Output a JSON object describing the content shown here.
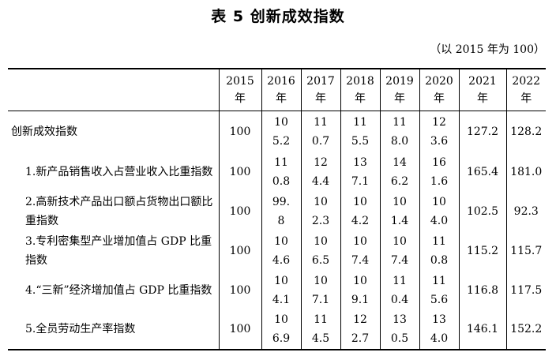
{
  "title": "表 5   创新成效指数",
  "subtitle": "（以 2015 年为 100）",
  "table": {
    "header": [
      {
        "year": "2015",
        "unit": "年"
      },
      {
        "year": "2016",
        "unit": "年"
      },
      {
        "year": "2017",
        "unit": "年"
      },
      {
        "year": "2018",
        "unit": "年"
      },
      {
        "year": "2019",
        "unit": "年"
      },
      {
        "year": "2020",
        "unit": "年"
      },
      {
        "year": "2021",
        "unit": "年"
      },
      {
        "year": "2022",
        "unit": "年"
      }
    ],
    "rows": [
      {
        "label": "创新成效指数",
        "values": [
          "100",
          "105.2",
          "110.7",
          "115.5",
          "118.0",
          "123.6",
          "127.2",
          "128.2"
        ]
      },
      {
        "label": "1.新产品销售收入占营业收入比重指数",
        "values": [
          "100",
          "110.8",
          "124.4",
          "137.1",
          "146.2",
          "161.6",
          "165.4",
          "181.0"
        ]
      },
      {
        "label": "2.高新技术产品出口额占货物出口额比重指数",
        "values": [
          "100",
          "99.8",
          "102.3",
          "104.2",
          "101.4",
          "104.0",
          "102.5",
          "92.3"
        ]
      },
      {
        "label": "3.专利密集型产业增加值占 GDP 比重指数",
        "values": [
          "100",
          "104.6",
          "106.5",
          "107.4",
          "107.4",
          "110.8",
          "115.2",
          "115.7"
        ]
      },
      {
        "label": "4.“三新”经济增加值占 GDP 比重指数",
        "values": [
          "100",
          "104.1",
          "107.1",
          "109.1",
          "110.4",
          "115.6",
          "116.8",
          "117.5"
        ]
      },
      {
        "label": "5.全员劳动生产率指数",
        "values": [
          "100",
          "106.9",
          "114.5",
          "122.7",
          "130.5",
          "134.0",
          "146.1",
          "152.2"
        ]
      }
    ]
  }
}
